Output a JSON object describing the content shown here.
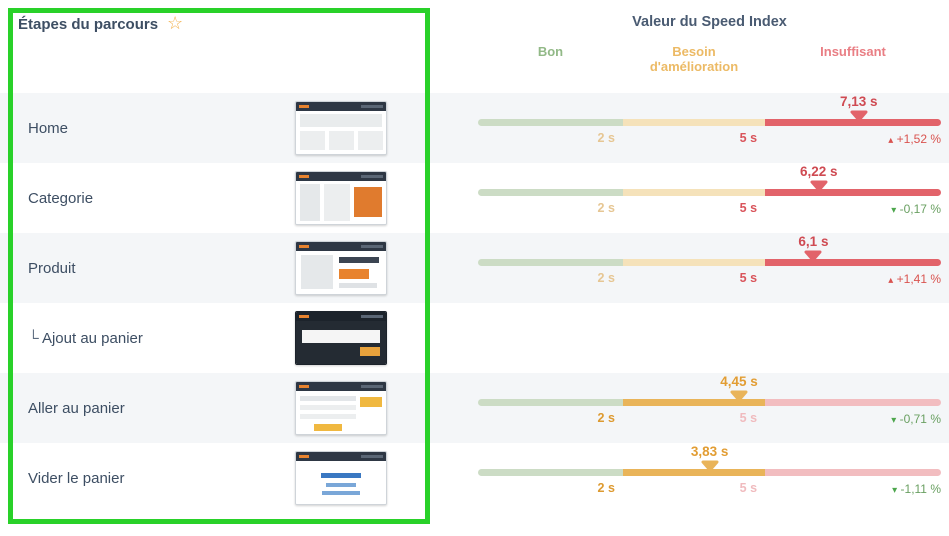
{
  "left_panel": {
    "header": {
      "title": "Étapes du parcours",
      "star_icon": "☆",
      "star_color": "#f2b24e"
    }
  },
  "right_panel": {
    "title": "Valeur du Speed Index",
    "zones": [
      {
        "label": "Bon",
        "color": "#92b987"
      },
      {
        "label": "Besoin d'amélioration",
        "color": "#ecba65"
      },
      {
        "label": "Insuffisant",
        "color": "#e97e84"
      }
    ]
  },
  "annotation": {
    "shape": "rectangle",
    "color": "#29d129",
    "region": "left-column"
  },
  "chart_data": {
    "type": "bar",
    "subtype": "bullet-gauge-per-row",
    "title": "Valeur du Speed Index",
    "unit": "s",
    "thresholds_s": [
      2,
      5
    ],
    "axis_max_s": 9,
    "tick_labels": [
      "2 s",
      "5 s"
    ],
    "segment_fractions": [
      0.313,
      0.307,
      0.38
    ],
    "zone_colors": {
      "good": "#ccdcc5",
      "warning_bold": "#e9b459",
      "warning_muted": "#f5e2ba",
      "bad_bold": "#e2636a",
      "bad_muted": "#f2bdc0"
    },
    "rows": [
      {
        "step": "Home",
        "indent_glyph": "",
        "thumb": "home",
        "value_s": 7.13,
        "value_label": "7,13 s",
        "zone": "bad",
        "delta": "+1,52 %",
        "delta_direction": "up"
      },
      {
        "step": "Categorie",
        "indent_glyph": "",
        "thumb": "category",
        "value_s": 6.22,
        "value_label": "6,22 s",
        "zone": "bad",
        "delta": "-0,17 %",
        "delta_direction": "down"
      },
      {
        "step": "Produit",
        "indent_glyph": "",
        "thumb": "product",
        "value_s": 6.1,
        "value_label": "6,1 s",
        "zone": "bad",
        "delta": "+1,41 %",
        "delta_direction": "up"
      },
      {
        "step": "Ajout au panier",
        "indent_glyph": "└",
        "thumb": "dark",
        "value_s": null,
        "value_label": "",
        "zone": "",
        "delta": "",
        "delta_direction": ""
      },
      {
        "step": "Aller au panier",
        "indent_glyph": "",
        "thumb": "cart",
        "value_s": 4.45,
        "value_label": "4,45 s",
        "zone": "warn",
        "delta": "-0,71 %",
        "delta_direction": "down"
      },
      {
        "step": "Vider le panier",
        "indent_glyph": "",
        "thumb": "empty",
        "value_s": 3.83,
        "value_label": "3,83 s",
        "zone": "warn",
        "delta": "-1,11 %",
        "delta_direction": "down"
      }
    ]
  }
}
